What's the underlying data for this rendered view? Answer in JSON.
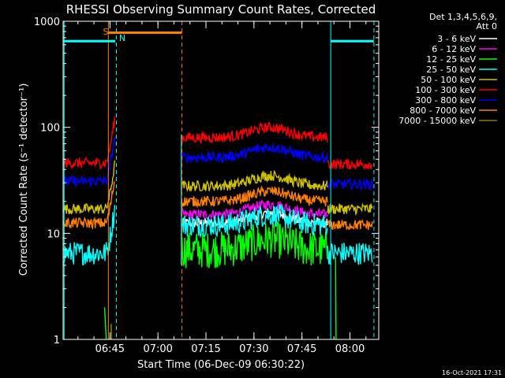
{
  "chart_data": {
    "type": "line",
    "title": "RHESSI Observing Summary Count Rates, Corrected",
    "xlabel": "Start Time (06-Dec-09 06:30:22)",
    "ylabel": "Corrected Count Rate (s⁻¹ detector⁻¹)",
    "yscale": "log",
    "ylim": [
      1,
      1000
    ],
    "xlim": [
      "06:30:22",
      "08:09:00"
    ],
    "x_ticks": [
      "06:45",
      "07:00",
      "07:15",
      "07:30",
      "07:45",
      "08:00"
    ],
    "y_ticks": [
      "1",
      "10",
      "100",
      "1000"
    ],
    "legend_position": "right",
    "legend_header": [
      "Det 1,3,4,5,6,9,",
      "Att 0"
    ],
    "series": [
      {
        "name": "3 - 6 keV",
        "color": "#ffffff",
        "level_before": null,
        "level_after": 12.5,
        "level_end": null
      },
      {
        "name": "6 - 12 keV",
        "color": "#ff00ff",
        "level_before": null,
        "level_after": 15,
        "level_end": null
      },
      {
        "name": "12 - 25 keV",
        "color": "#00ff00",
        "level_before": null,
        "level_after": 7,
        "level_end": null
      },
      {
        "name": "25 - 50 keV",
        "color": "#00ffff",
        "level_before": 6.5,
        "level_after": 12,
        "level_end": 6.5
      },
      {
        "name": "50 - 100 keV",
        "color": "#d0c000",
        "level_before": 17,
        "level_after": 28,
        "level_end": 17
      },
      {
        "name": "100 - 300 keV",
        "color": "#ff0000",
        "level_before": 46,
        "level_after": 80,
        "level_end": 45
      },
      {
        "name": "300 - 800 keV",
        "color": "#0000ff",
        "level_before": 31,
        "level_after": 52,
        "level_end": 29
      },
      {
        "name": "800 - 7000 keV",
        "color": "#ff8000",
        "level_before": 12.5,
        "level_after": 20,
        "level_end": 12
      },
      {
        "name": "7000 - 15000 keV",
        "color": "#808000",
        "level_before": null,
        "level_after": null,
        "level_end": null
      }
    ],
    "annotations": [
      {
        "label": "S",
        "color": "#ff8000"
      },
      {
        "label": "N",
        "color": "#00ffff"
      }
    ],
    "timestamp": "16-Oct-2021 17:31"
  }
}
